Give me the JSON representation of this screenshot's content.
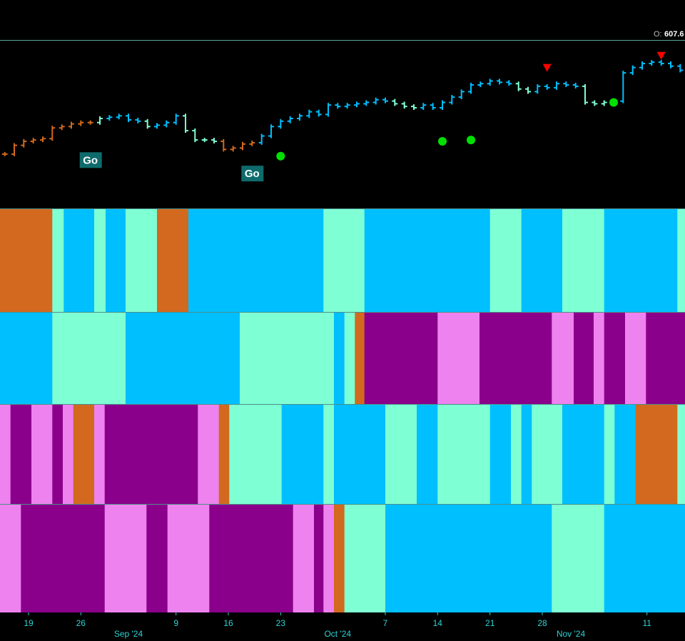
{
  "chart_data": {
    "type": "bar",
    "price_readout": {
      "label": "O:",
      "value": "607.6"
    },
    "colors": {
      "strong_go": "#00bfff",
      "weak_go": "#7fffd4",
      "weak_nogo": "#ee82ee",
      "strong_nogo": "#8b008b",
      "nogo_orange": "#d2691e",
      "go_signal": "#00e000",
      "countertrend": "#ff0000",
      "axis_text": "#2fd3d3"
    },
    "price_bars": [
      {
        "t": 0,
        "price": 535.2,
        "c": "nogo_orange"
      },
      {
        "t": 1,
        "price": 537.8,
        "c": "nogo_orange"
      },
      {
        "t": 2,
        "price": 539.0,
        "c": "nogo_orange"
      },
      {
        "t": 3,
        "price": 539.4,
        "c": "nogo_orange"
      },
      {
        "t": 4,
        "price": 539.8,
        "c": "nogo_orange"
      },
      {
        "t": 5,
        "price": 543.0,
        "c": "nogo_orange"
      },
      {
        "t": 6,
        "price": 543.4,
        "c": "nogo_orange"
      },
      {
        "t": 7,
        "price": 544.2,
        "c": "nogo_orange"
      },
      {
        "t": 8,
        "price": 544.6,
        "c": "nogo_orange"
      },
      {
        "t": 9,
        "price": 544.6,
        "c": "nogo_orange"
      },
      {
        "t": 10,
        "price": 545.8,
        "c": "weak_go"
      },
      {
        "t": 11,
        "price": 546.2,
        "c": "strong_go"
      },
      {
        "t": 12,
        "price": 546.6,
        "c": "strong_go"
      },
      {
        "t": 13,
        "price": 545.4,
        "c": "strong_go"
      },
      {
        "t": 14,
        "price": 545.0,
        "c": "strong_go"
      },
      {
        "t": 15,
        "price": 543.4,
        "c": "weak_go"
      },
      {
        "t": 16,
        "price": 543.8,
        "c": "strong_go"
      },
      {
        "t": 17,
        "price": 544.6,
        "c": "strong_go"
      },
      {
        "t": 18,
        "price": 546.6,
        "c": "strong_go"
      },
      {
        "t": 19,
        "price": 542.2,
        "c": "weak_go"
      },
      {
        "t": 20,
        "price": 539.4,
        "c": "weak_go"
      },
      {
        "t": 21,
        "price": 539.4,
        "c": "weak_go"
      },
      {
        "t": 22,
        "price": 539.0,
        "c": "weak_go"
      },
      {
        "t": 23,
        "price": 536.6,
        "c": "nogo_orange"
      },
      {
        "t": 24,
        "price": 537.0,
        "c": "nogo_orange"
      },
      {
        "t": 25,
        "price": 538.2,
        "c": "nogo_orange"
      },
      {
        "t": 26,
        "price": 538.6,
        "c": "nogo_orange"
      },
      {
        "t": 27,
        "price": 540.6,
        "c": "strong_go"
      },
      {
        "t": 28,
        "price": 543.4,
        "c": "strong_go"
      },
      {
        "t": 29,
        "price": 545.0,
        "c": "strong_go"
      },
      {
        "t": 30,
        "price": 545.8,
        "c": "strong_go"
      },
      {
        "t": 31,
        "price": 546.6,
        "c": "strong_go"
      },
      {
        "t": 32,
        "price": 547.8,
        "c": "strong_go"
      },
      {
        "t": 33,
        "price": 547.0,
        "c": "strong_go"
      },
      {
        "t": 34,
        "price": 549.8,
        "c": "strong_go"
      },
      {
        "t": 35,
        "price": 549.4,
        "c": "strong_go"
      },
      {
        "t": 36,
        "price": 549.8,
        "c": "strong_go"
      },
      {
        "t": 37,
        "price": 550.2,
        "c": "strong_go"
      },
      {
        "t": 38,
        "price": 550.6,
        "c": "strong_go"
      },
      {
        "t": 39,
        "price": 551.4,
        "c": "strong_go"
      },
      {
        "t": 40,
        "price": 551.0,
        "c": "strong_go"
      },
      {
        "t": 41,
        "price": 550.2,
        "c": "weak_go"
      },
      {
        "t": 42,
        "price": 549.4,
        "c": "weak_go"
      },
      {
        "t": 43,
        "price": 549.0,
        "c": "weak_go"
      },
      {
        "t": 44,
        "price": 549.8,
        "c": "strong_go"
      },
      {
        "t": 45,
        "price": 549.0,
        "c": "strong_go"
      },
      {
        "t": 46,
        "price": 550.6,
        "c": "strong_go"
      },
      {
        "t": 47,
        "price": 552.2,
        "c": "strong_go"
      },
      {
        "t": 48,
        "price": 553.8,
        "c": "strong_go"
      },
      {
        "t": 49,
        "price": 555.8,
        "c": "strong_go"
      },
      {
        "t": 50,
        "price": 556.2,
        "c": "strong_go"
      },
      {
        "t": 51,
        "price": 557.0,
        "c": "strong_go"
      },
      {
        "t": 52,
        "price": 556.6,
        "c": "strong_go"
      },
      {
        "t": 53,
        "price": 556.2,
        "c": "strong_go"
      },
      {
        "t": 54,
        "price": 554.6,
        "c": "weak_go"
      },
      {
        "t": 55,
        "price": 553.8,
        "c": "weak_go"
      },
      {
        "t": 56,
        "price": 555.4,
        "c": "strong_go"
      },
      {
        "t": 57,
        "price": 555.0,
        "c": "strong_go"
      },
      {
        "t": 58,
        "price": 556.2,
        "c": "strong_go"
      },
      {
        "t": 59,
        "price": 555.8,
        "c": "strong_go"
      },
      {
        "t": 60,
        "price": 555.4,
        "c": "strong_go"
      },
      {
        "t": 61,
        "price": 550.6,
        "c": "weak_go"
      },
      {
        "t": 62,
        "price": 550.2,
        "c": "weak_go"
      },
      {
        "t": 63,
        "price": 550.6,
        "c": "weak_go"
      },
      {
        "t": 64,
        "price": 551.0,
        "c": "weak_go"
      },
      {
        "t": 65,
        "price": 559.4,
        "c": "strong_go"
      },
      {
        "t": 66,
        "price": 561.0,
        "c": "strong_go"
      },
      {
        "t": 67,
        "price": 562.2,
        "c": "strong_go"
      },
      {
        "t": 68,
        "price": 562.6,
        "c": "strong_go"
      },
      {
        "t": 69,
        "price": 562.2,
        "c": "strong_go"
      },
      {
        "t": 70,
        "price": 561.4,
        "c": "strong_go"
      },
      {
        "t": 71,
        "price": 560.2,
        "c": "strong_go"
      }
    ],
    "go_labels": [
      {
        "t": 9,
        "price": 533.4,
        "label": "Go"
      },
      {
        "t": 26,
        "price": 529.4,
        "label": "Go"
      }
    ],
    "go_signals": [
      {
        "t": 29,
        "price": 534.6
      },
      {
        "t": 46,
        "price": 539.0
      },
      {
        "t": 49,
        "price": 539.4
      },
      {
        "t": 64,
        "price": 550.6
      }
    ],
    "countertrend_markers": [
      {
        "t": 57,
        "price": 561.0
      },
      {
        "t": 69,
        "price": 564.6
      }
    ],
    "y_domain": [
      519,
      569
    ],
    "x_domain": [
      0,
      72
    ],
    "x_ticks": [
      {
        "t": 3,
        "label": "19"
      },
      {
        "t": 8.5,
        "label": "26"
      },
      {
        "t": 18.5,
        "label": "9"
      },
      {
        "t": 24,
        "label": "16"
      },
      {
        "t": 29.5,
        "label": "23"
      },
      {
        "t": 40.5,
        "label": "7"
      },
      {
        "t": 46,
        "label": "14"
      },
      {
        "t": 51.5,
        "label": "21"
      },
      {
        "t": 57,
        "label": "28"
      },
      {
        "t": 68,
        "label": "11"
      }
    ],
    "month_labels": [
      {
        "t": 13.5,
        "label": "Sep '24"
      },
      {
        "t": 35.5,
        "label": "Oct '24"
      },
      {
        "t": 60,
        "label": "Nov '24"
      }
    ],
    "bands": [
      {
        "segments": [
          {
            "from": 0,
            "to": 5.5,
            "c": "nogo_orange"
          },
          {
            "from": 5.5,
            "to": 6.7,
            "c": "weak_go"
          },
          {
            "from": 6.7,
            "to": 9.9,
            "c": "strong_go"
          },
          {
            "from": 9.9,
            "to": 11.1,
            "c": "weak_go"
          },
          {
            "from": 11.1,
            "to": 13.2,
            "c": "strong_go"
          },
          {
            "from": 13.2,
            "to": 16.5,
            "c": "weak_go"
          },
          {
            "from": 16.5,
            "to": 19.8,
            "c": "nogo_orange"
          },
          {
            "from": 19.8,
            "to": 34,
            "c": "strong_go"
          },
          {
            "from": 34,
            "to": 38.3,
            "c": "weak_go"
          },
          {
            "from": 38.3,
            "to": 51.5,
            "c": "strong_go"
          },
          {
            "from": 51.5,
            "to": 54.8,
            "c": "weak_go"
          },
          {
            "from": 54.8,
            "to": 59.1,
            "c": "strong_go"
          },
          {
            "from": 59.1,
            "to": 63.5,
            "c": "weak_go"
          },
          {
            "from": 63.5,
            "to": 71.2,
            "c": "strong_go"
          },
          {
            "from": 71.2,
            "to": 72,
            "c": "weak_go"
          }
        ]
      },
      {
        "segments": [
          {
            "from": 0,
            "to": 5.5,
            "c": "strong_go"
          },
          {
            "from": 5.5,
            "to": 13.2,
            "c": "weak_go"
          },
          {
            "from": 13.2,
            "to": 25.2,
            "c": "strong_go"
          },
          {
            "from": 25.2,
            "to": 35.1,
            "c": "weak_go"
          },
          {
            "from": 35.1,
            "to": 36.2,
            "c": "strong_go"
          },
          {
            "from": 36.2,
            "to": 37.3,
            "c": "weak_go"
          },
          {
            "from": 37.3,
            "to": 38.3,
            "c": "nogo_orange"
          },
          {
            "from": 38.3,
            "to": 46,
            "c": "strong_nogo"
          },
          {
            "from": 46,
            "to": 50.4,
            "c": "weak_nogo"
          },
          {
            "from": 50.4,
            "to": 58,
            "c": "strong_nogo"
          },
          {
            "from": 58,
            "to": 60.3,
            "c": "weak_nogo"
          },
          {
            "from": 60.3,
            "to": 62.4,
            "c": "strong_nogo"
          },
          {
            "from": 62.4,
            "to": 63.5,
            "c": "weak_nogo"
          },
          {
            "from": 63.5,
            "to": 65.7,
            "c": "strong_nogo"
          },
          {
            "from": 65.7,
            "to": 67.9,
            "c": "weak_nogo"
          },
          {
            "from": 67.9,
            "to": 72,
            "c": "strong_nogo"
          }
        ]
      },
      {
        "segments": [
          {
            "from": 0,
            "to": 1.1,
            "c": "weak_nogo"
          },
          {
            "from": 1.1,
            "to": 3.3,
            "c": "strong_nogo"
          },
          {
            "from": 3.3,
            "to": 5.5,
            "c": "weak_nogo"
          },
          {
            "from": 5.5,
            "to": 6.6,
            "c": "strong_nogo"
          },
          {
            "from": 6.6,
            "to": 7.7,
            "c": "weak_nogo"
          },
          {
            "from": 7.7,
            "to": 9.9,
            "c": "nogo_orange"
          },
          {
            "from": 9.9,
            "to": 11,
            "c": "weak_nogo"
          },
          {
            "from": 11,
            "to": 20.8,
            "c": "strong_nogo"
          },
          {
            "from": 20.8,
            "to": 23,
            "c": "weak_nogo"
          },
          {
            "from": 23,
            "to": 24.1,
            "c": "nogo_orange"
          },
          {
            "from": 24.1,
            "to": 29.6,
            "c": "weak_go"
          },
          {
            "from": 29.6,
            "to": 34,
            "c": "strong_go"
          },
          {
            "from": 34,
            "to": 35.1,
            "c": "weak_go"
          },
          {
            "from": 35.1,
            "to": 40.5,
            "c": "strong_go"
          },
          {
            "from": 40.5,
            "to": 43.8,
            "c": "weak_go"
          },
          {
            "from": 43.8,
            "to": 46,
            "c": "strong_go"
          },
          {
            "from": 46,
            "to": 51.5,
            "c": "weak_go"
          },
          {
            "from": 51.5,
            "to": 53.7,
            "c": "strong_go"
          },
          {
            "from": 53.7,
            "to": 54.8,
            "c": "weak_go"
          },
          {
            "from": 54.8,
            "to": 55.9,
            "c": "strong_go"
          },
          {
            "from": 55.9,
            "to": 59.1,
            "c": "weak_go"
          },
          {
            "from": 59.1,
            "to": 63.5,
            "c": "strong_go"
          },
          {
            "from": 63.5,
            "to": 64.6,
            "c": "weak_go"
          },
          {
            "from": 64.6,
            "to": 66.8,
            "c": "strong_go"
          },
          {
            "from": 66.8,
            "to": 71.2,
            "c": "nogo_orange"
          },
          {
            "from": 71.2,
            "to": 72,
            "c": "weak_go"
          }
        ]
      },
      {
        "segments": [
          {
            "from": 0,
            "to": 2.2,
            "c": "weak_nogo"
          },
          {
            "from": 2.2,
            "to": 11,
            "c": "strong_nogo"
          },
          {
            "from": 11,
            "to": 15.4,
            "c": "weak_nogo"
          },
          {
            "from": 15.4,
            "to": 17.6,
            "c": "strong_nogo"
          },
          {
            "from": 17.6,
            "to": 22,
            "c": "weak_nogo"
          },
          {
            "from": 22,
            "to": 30.8,
            "c": "strong_nogo"
          },
          {
            "from": 30.8,
            "to": 33,
            "c": "weak_nogo"
          },
          {
            "from": 33,
            "to": 34,
            "c": "strong_nogo"
          },
          {
            "from": 34,
            "to": 35.1,
            "c": "weak_nogo"
          },
          {
            "from": 35.1,
            "to": 36.2,
            "c": "nogo_orange"
          },
          {
            "from": 36.2,
            "to": 40.5,
            "c": "weak_go"
          },
          {
            "from": 40.5,
            "to": 58,
            "c": "strong_go"
          },
          {
            "from": 58,
            "to": 63.5,
            "c": "weak_go"
          },
          {
            "from": 63.5,
            "to": 72,
            "c": "strong_go"
          }
        ]
      }
    ]
  }
}
